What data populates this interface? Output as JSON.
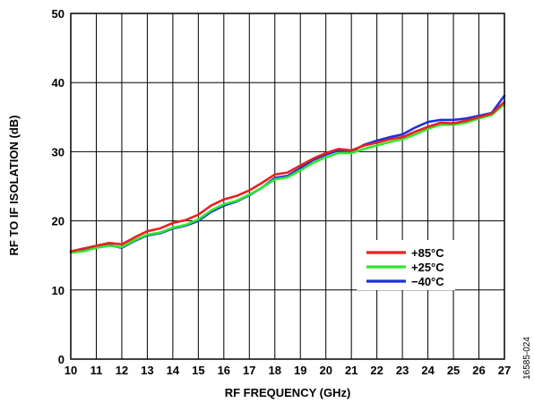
{
  "figure_id": "16585-024",
  "chart_data": {
    "type": "line",
    "xlabel": "RF FREQUENCY (GHz)",
    "ylabel": "RF TO IF ISOLATION (dB)",
    "xlim": [
      10,
      27
    ],
    "ylim": [
      0,
      50
    ],
    "x_ticks": [
      10,
      11,
      12,
      13,
      14,
      15,
      16,
      17,
      18,
      19,
      20,
      21,
      22,
      23,
      24,
      25,
      26,
      27
    ],
    "y_ticks": [
      0,
      10,
      20,
      30,
      40,
      50
    ],
    "grid": true,
    "legend_position": "lower-right",
    "series": [
      {
        "name": "+85°C",
        "color": "#e8211f",
        "x": [
          10,
          10.5,
          11,
          11.5,
          12,
          12.5,
          13,
          13.5,
          14,
          14.5,
          15,
          15.5,
          16,
          16.5,
          17,
          17.5,
          18,
          18.5,
          19,
          19.5,
          20,
          20.5,
          21,
          21.5,
          22,
          22.5,
          23,
          23.5,
          24,
          24.5,
          25,
          25.5,
          26,
          26.5,
          27
        ],
        "y": [
          15.6,
          16.0,
          16.4,
          16.8,
          16.6,
          17.6,
          18.5,
          18.9,
          19.7,
          20.1,
          20.9,
          22.2,
          23.1,
          23.6,
          24.4,
          25.5,
          26.7,
          27.0,
          28.0,
          29.0,
          29.8,
          30.4,
          30.2,
          30.9,
          31.3,
          31.8,
          32.1,
          32.9,
          33.6,
          34.2,
          34.1,
          34.5,
          35.0,
          35.5,
          37.2
        ]
      },
      {
        "name": "+25°C",
        "color": "#2ee82a",
        "x": [
          10,
          10.5,
          11,
          11.5,
          12,
          12.5,
          13,
          13.5,
          14,
          14.5,
          15,
          15.5,
          16,
          16.5,
          17,
          17.5,
          18,
          18.5,
          19,
          19.5,
          20,
          20.5,
          21,
          21.5,
          22,
          22.5,
          23,
          23.5,
          24,
          24.5,
          25,
          25.5,
          26,
          26.5,
          27
        ],
        "y": [
          15.4,
          15.6,
          16.1,
          16.4,
          16.2,
          17.2,
          18.0,
          18.3,
          19.0,
          19.4,
          20.2,
          21.5,
          22.4,
          22.9,
          23.8,
          24.8,
          26.0,
          26.3,
          27.3,
          28.4,
          29.2,
          29.8,
          29.8,
          30.4,
          30.9,
          31.4,
          31.8,
          32.5,
          33.3,
          33.9,
          33.9,
          34.2,
          34.8,
          35.3,
          36.9
        ]
      },
      {
        "name": "−40°C",
        "color": "#1f2fe0",
        "x": [
          10,
          10.5,
          11,
          11.5,
          12,
          12.5,
          13,
          13.5,
          14,
          14.5,
          15,
          15.5,
          16,
          16.5,
          17,
          17.5,
          18,
          18.5,
          19,
          19.5,
          20,
          20.5,
          21,
          21.5,
          22,
          22.5,
          23,
          23.5,
          24,
          24.5,
          25,
          25.5,
          26,
          26.5,
          27
        ],
        "y": [
          15.5,
          15.7,
          16.2,
          16.5,
          16.1,
          17.1,
          17.9,
          18.2,
          18.9,
          19.3,
          20.0,
          21.3,
          22.2,
          22.8,
          23.7,
          24.8,
          26.2,
          26.5,
          27.6,
          28.8,
          29.6,
          30.2,
          30.0,
          31.0,
          31.6,
          32.1,
          32.5,
          33.5,
          34.3,
          34.6,
          34.6,
          34.8,
          35.2,
          35.6,
          38.1
        ]
      }
    ]
  }
}
